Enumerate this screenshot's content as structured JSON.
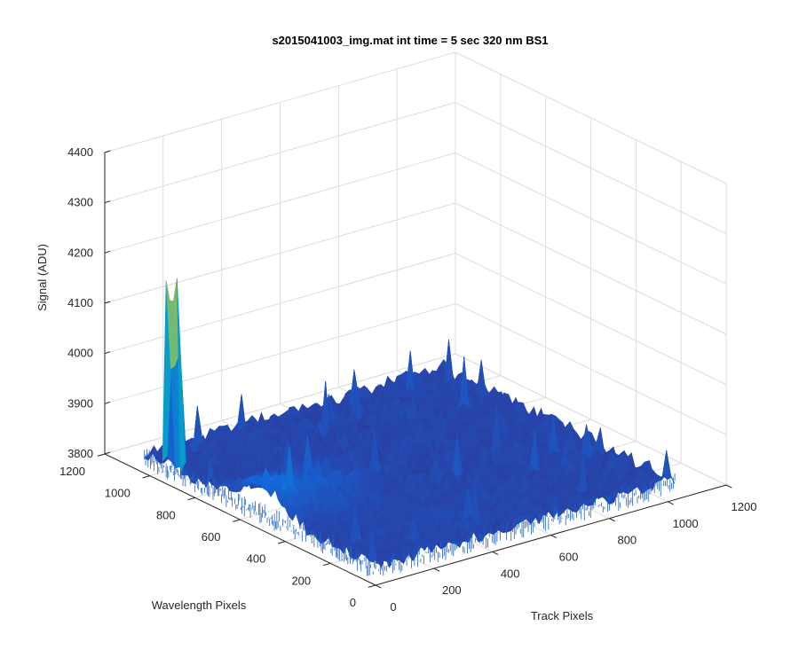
{
  "chart_data": {
    "type": "surface",
    "title": "s2015041003_img.mat int time = 5 sec  320 nm BS1",
    "xlabel": "Track Pixels",
    "ylabel": "Wavelength Pixels",
    "zlabel": "Signal (ADU)",
    "xlim": [
      0,
      1200
    ],
    "ylim": [
      0,
      1200
    ],
    "zlim": [
      3800,
      4400
    ],
    "x_ticks": [
      0,
      200,
      400,
      600,
      800,
      1000,
      1200
    ],
    "y_ticks": [
      0,
      200,
      400,
      600,
      800,
      1000,
      1200
    ],
    "z_ticks": [
      3800,
      3900,
      4000,
      4100,
      4200,
      4300,
      4400
    ],
    "data_extent": {
      "x": [
        0,
        1024
      ],
      "y": [
        0,
        1024
      ]
    },
    "background_level": 3840,
    "noise_amplitude": 30,
    "features": [
      {
        "name": "peak",
        "x": [
          0,
          30
        ],
        "y": [
          870,
          930
        ],
        "peak_value": 4220
      },
      {
        "name": "ramp",
        "x": [
          0,
          420
        ],
        "y": [
          300,
          700
        ],
        "peak_value": 3900
      }
    ],
    "grid": true,
    "colormap": "parula"
  }
}
